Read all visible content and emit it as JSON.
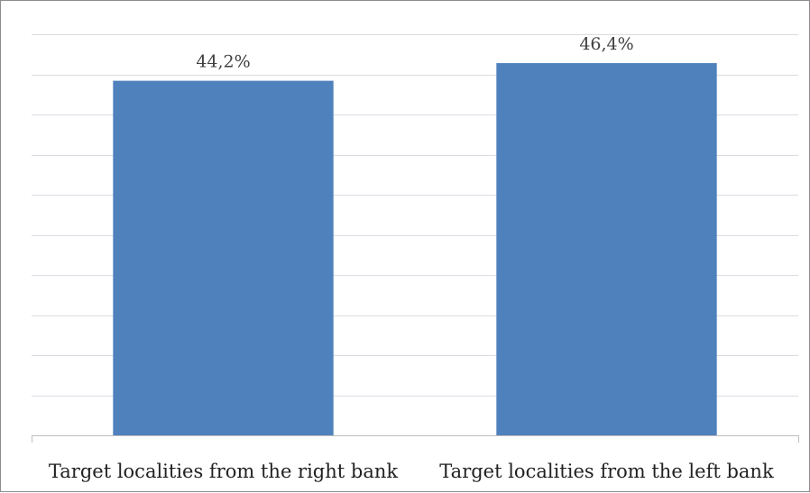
{
  "chart_data": {
    "type": "bar",
    "categories": [
      "Target localities from the right bank",
      "Target localities from the left bank"
    ],
    "values": [
      44.2,
      46.4
    ],
    "value_labels": [
      "44,2%",
      "46,4%"
    ],
    "ylim": [
      0,
      50
    ],
    "grid": true,
    "legend": "none",
    "bar_color": "#4f81bd"
  }
}
